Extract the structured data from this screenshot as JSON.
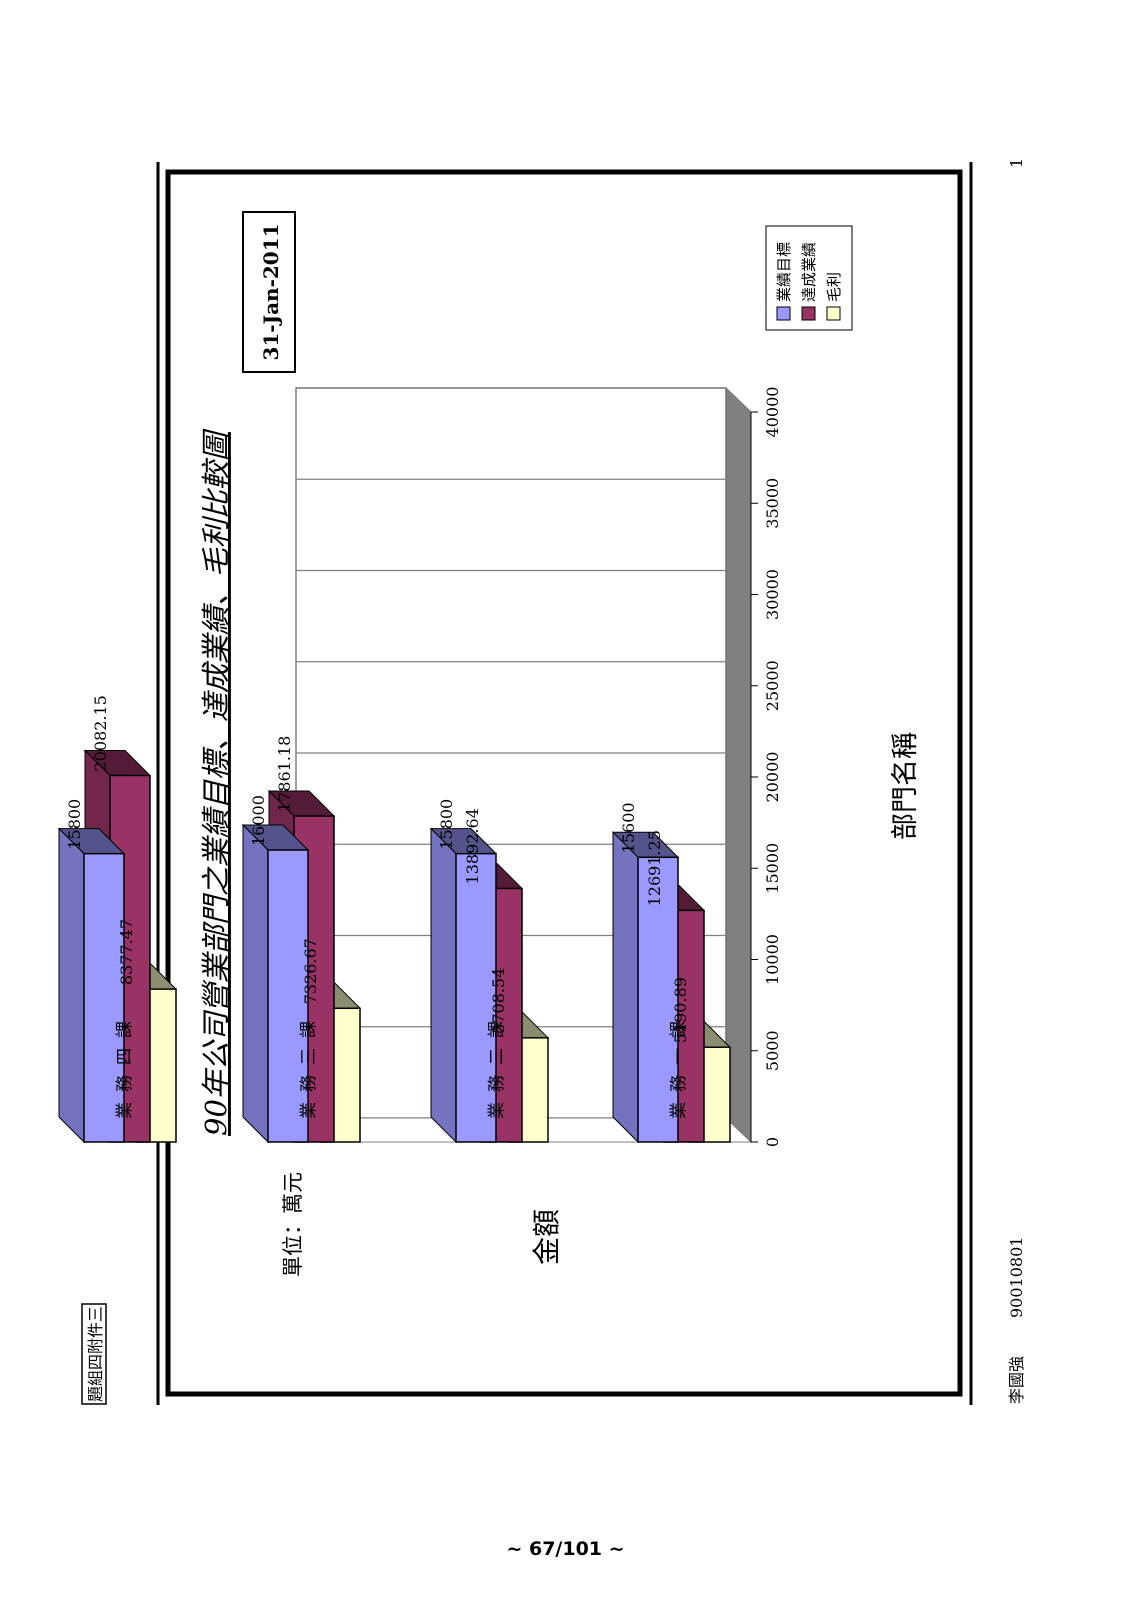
{
  "page": {
    "annex_label": "題組四附件三",
    "footer_name": "李國強",
    "footer_code": "90010801",
    "corner_number": "1",
    "page_number": "~ 67/101 ~"
  },
  "chart_data": {
    "type": "bar",
    "title": "90年公司營業部門之業績目標、達成業績、毛利比較圖",
    "date_label": "31-Jan-2011",
    "unit_label": "單位：萬元",
    "ylabel": "金額",
    "xlabel": "部門名稱",
    "ylim": [
      0,
      40000
    ],
    "yticks": [
      0,
      5000,
      10000,
      15000,
      20000,
      25000,
      30000,
      35000,
      40000
    ],
    "categories": [
      "業務一課",
      "業務二課",
      "業務三課",
      "業務四課"
    ],
    "series": [
      {
        "name": "業績目標",
        "color": "#9999FF",
        "values": [
          15600,
          15800,
          16000,
          15800
        ],
        "labels": [
          "15600",
          "15800",
          "16000",
          "15800"
        ]
      },
      {
        "name": "達成業績",
        "color": "#993366",
        "values": [
          12691.25,
          13892.64,
          17861.18,
          20082.15
        ],
        "labels": [
          "12691.25",
          "13892.64",
          "17861.18",
          "20082.15"
        ]
      },
      {
        "name": "毛利",
        "color": "#FFFFCC",
        "values": [
          5190.89,
          5708.54,
          7326.67,
          8377.47
        ],
        "labels": [
          "5190.89",
          "5708.54",
          "7326.67",
          "8377.47"
        ]
      }
    ],
    "legend_position": "right",
    "grid": true,
    "style": "3d-clustered-bar"
  }
}
